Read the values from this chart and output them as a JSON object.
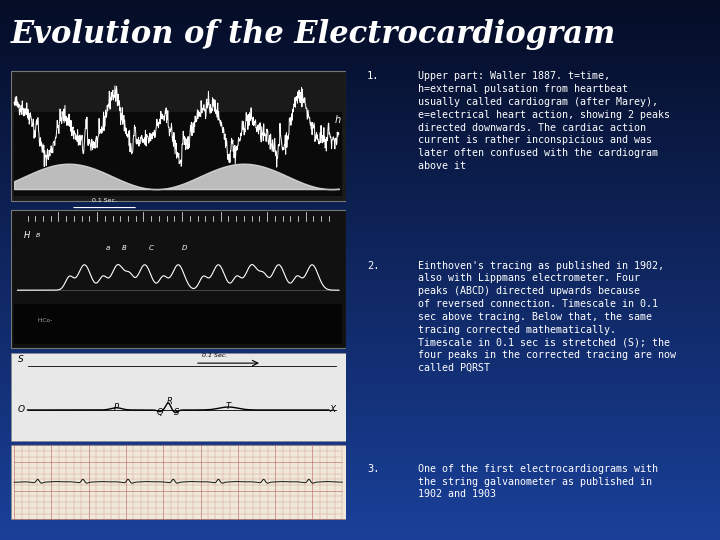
{
  "title": "Evolution of the Electrocardiogram",
  "title_color": "#FFFFFF",
  "title_fontsize": 22,
  "bg_color": "#1a4fa0",
  "item1_num": "1.",
  "item1": "Upper part: Waller 1887. t=time,\nh=external pulsation from heartbeat\nusually called cardiogram (after Marey),\ne=electrical heart action, showing 2 peaks\ndirected downwards. The cardiac action\ncurrent is rather inconspicious and was\nlater often confused with the cardiogram\nabove it",
  "item2_num": "2.",
  "item2": "Einthoven's tracing as published in 1902,\nalso with Lippmans electrometer. Four\npeaks (ABCD) directed upwards because\nof reversed connection. Timescale in 0.1\nsec above tracing. Below that, the same\ntracing corrected mathematically.\nTimescale in 0.1 sec is stretched (S); the\nfour peaks in the corrected tracing are now\ncalled PQRST",
  "item3_num": "3.",
  "item3": "One of the first electrocardiograms with\nthe string galvanometer as published in\n1902 and 1903",
  "text_color": "#FFFFFF",
  "text_fontsize": 7.2,
  "num_fontsize": 7.5
}
